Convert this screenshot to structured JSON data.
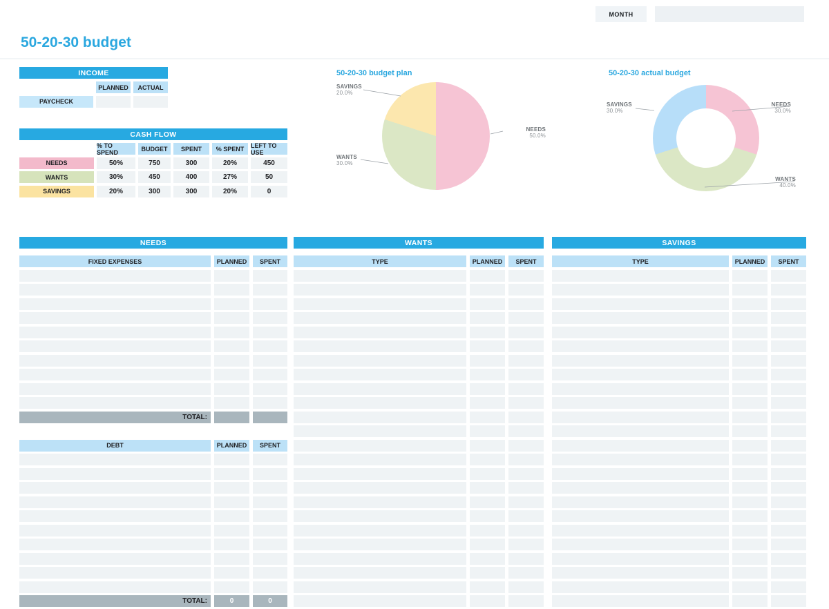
{
  "topbar": {
    "month_label": "MONTH",
    "month_value": ""
  },
  "page_title": "50-20-30 budget",
  "colors": {
    "header_blue": "#27a9e1",
    "subheader_blue": "#bce1f7",
    "row_fill": "#eff3f5",
    "total_gray": "#a9b6bd",
    "needs_pink": "#f3bacb",
    "wants_green": "#d6e3bb",
    "savings_yellow": "#fbe3a1",
    "chart_savings_blue": "#b7def9",
    "title_blue": "#2aa7df"
  },
  "income": {
    "title": "INCOME",
    "columns": [
      "PLANNED",
      "ACTUAL"
    ],
    "rows": [
      {
        "label": "PAYCHECK",
        "planned": "",
        "actual": ""
      }
    ]
  },
  "cash_flow": {
    "title": "CASH FLOW",
    "columns": [
      "% TO SPEND",
      "BUDGET",
      "SPENT",
      "% SPENT",
      "LEFT TO USE"
    ],
    "rows": [
      {
        "label": "NEEDS",
        "color": "#f3bacb",
        "values": [
          "50%",
          "750",
          "300",
          "20%",
          "450"
        ]
      },
      {
        "label": "WANTS",
        "color": "#d6e3bb",
        "values": [
          "30%",
          "450",
          "400",
          "27%",
          "50"
        ]
      },
      {
        "label": "SAVINGS",
        "color": "#fbe3a1",
        "values": [
          "20%",
          "300",
          "300",
          "20%",
          "0"
        ]
      }
    ]
  },
  "chart_data": [
    {
      "type": "pie",
      "title": "50-20-30 budget plan",
      "labels": [
        "NEEDS",
        "WANTS",
        "SAVINGS"
      ],
      "values": [
        50.0,
        30.0,
        20.0
      ],
      "value_labels": [
        "50.0%",
        "30.0%",
        "20.0%"
      ],
      "colors": [
        "#f6c4d4",
        "#dbe7c5",
        "#fce7ae"
      ],
      "legend_position": "callout-labels"
    },
    {
      "type": "donut",
      "title": "50-20-30 actual budget",
      "labels": [
        "NEEDS",
        "WANTS",
        "SAVINGS"
      ],
      "values": [
        30.0,
        40.0,
        30.0
      ],
      "value_labels": [
        "30.0%",
        "40.0%",
        "30.0%"
      ],
      "colors": [
        "#f6c4d4",
        "#dbe7c5",
        "#b7def9"
      ],
      "legend_position": "callout-labels"
    }
  ],
  "needs": {
    "title": "NEEDS",
    "expenses": {
      "name_header": "FIXED EXPENSES",
      "columns": [
        "PLANNED",
        "SPENT"
      ],
      "row_count": 10,
      "total_label": "TOTAL:",
      "total_planned": "",
      "total_spent": ""
    },
    "debt": {
      "name_header": "DEBT",
      "columns": [
        "PLANNED",
        "SPENT"
      ],
      "row_count": 10,
      "total_label": "TOTAL:",
      "total_planned": "0",
      "total_spent": "0"
    }
  },
  "wants": {
    "title": "WANTS",
    "name_header": "TYPE",
    "columns": [
      "PLANNED",
      "SPENT"
    ],
    "row_count": 24
  },
  "savings": {
    "title": "SAVINGS",
    "name_header": "TYPE",
    "columns": [
      "PLANNED",
      "SPENT"
    ],
    "row_count": 24
  }
}
